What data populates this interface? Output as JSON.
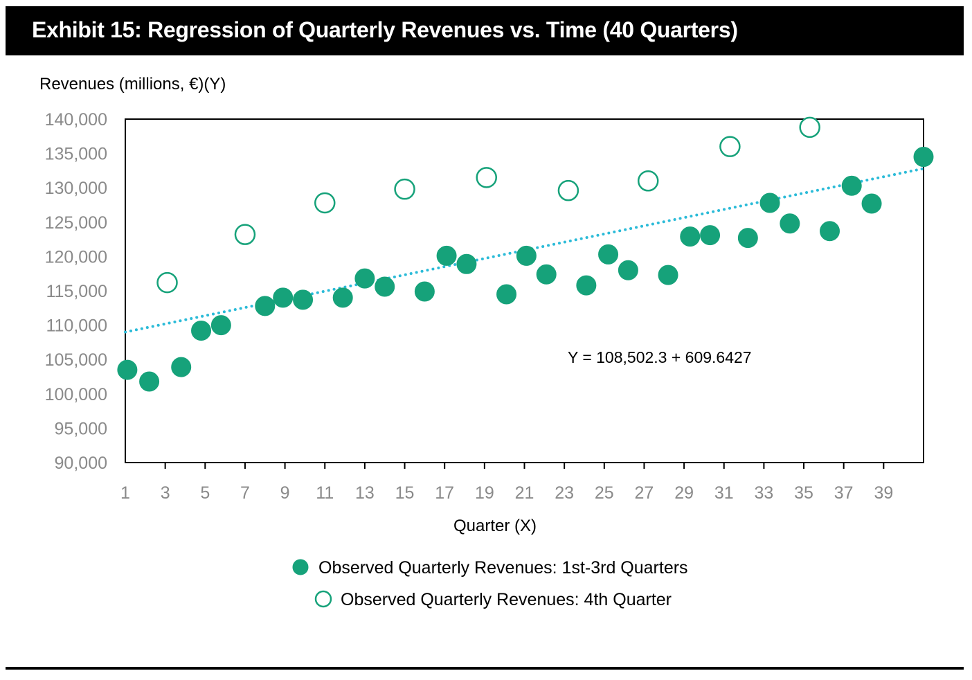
{
  "chart_data": {
    "type": "scatter",
    "title": "Exhibit 15: Regression of Quarterly Revenues vs. Time (40 Quarters)",
    "ylabel": "Revenues (millions, €)(Y)",
    "xlabel": "Quarter (X)",
    "ylim": [
      90000,
      140000
    ],
    "xlim": [
      1,
      41
    ],
    "yticks": [
      "90,000",
      "95,000",
      "100,000",
      "105,000",
      "110,000",
      "115,000",
      "120,000",
      "125,000",
      "130,000",
      "135,000",
      "140,000"
    ],
    "xticks": [
      "1",
      "3",
      "5",
      "7",
      "9",
      "11",
      "13",
      "15",
      "17",
      "19",
      "21",
      "23",
      "25",
      "27",
      "29",
      "31",
      "33",
      "35",
      "37",
      "39"
    ],
    "grid": false,
    "legend_position": "bottom",
    "series": [
      {
        "name": "Observed Quarterly Revenues: 1st-3rd Quarters",
        "marker": "filled-circle",
        "color": "#16a27a",
        "points": [
          [
            1.1,
            103500
          ],
          [
            2.2,
            101800
          ],
          [
            3.8,
            103900
          ],
          [
            4.8,
            109200
          ],
          [
            5.8,
            110000
          ],
          [
            8.0,
            112800
          ],
          [
            8.9,
            114000
          ],
          [
            9.9,
            113700
          ],
          [
            11.9,
            114000
          ],
          [
            13.0,
            116800
          ],
          [
            14.0,
            115600
          ],
          [
            16.0,
            114900
          ],
          [
            17.1,
            120100
          ],
          [
            18.1,
            118900
          ],
          [
            20.1,
            114500
          ],
          [
            21.1,
            120100
          ],
          [
            22.1,
            117400
          ],
          [
            24.1,
            115800
          ],
          [
            25.2,
            120300
          ],
          [
            26.2,
            118000
          ],
          [
            28.2,
            117300
          ],
          [
            29.3,
            122900
          ],
          [
            30.3,
            123100
          ],
          [
            32.2,
            122700
          ],
          [
            33.3,
            127800
          ],
          [
            34.3,
            124800
          ],
          [
            36.3,
            123700
          ],
          [
            37.4,
            130300
          ],
          [
            38.4,
            127700
          ],
          [
            41.0,
            134500
          ]
        ]
      },
      {
        "name": "Observed Quarterly Revenues: 4th Quarter",
        "marker": "hollow-circle",
        "color": "#16a27a",
        "points": [
          [
            3.1,
            116200
          ],
          [
            7.0,
            123200
          ],
          [
            11.0,
            127800
          ],
          [
            15.0,
            129800
          ],
          [
            19.1,
            131500
          ],
          [
            23.2,
            129600
          ],
          [
            27.2,
            131000
          ],
          [
            31.3,
            136000
          ],
          [
            35.3,
            138800
          ]
        ]
      }
    ],
    "trendline": {
      "style": "dotted",
      "color": "#2bbbd8",
      "x": [
        1,
        41
      ],
      "y": [
        109000,
        132800
      ]
    },
    "annotation": "Y = 108,502.3 + 609.6427"
  }
}
